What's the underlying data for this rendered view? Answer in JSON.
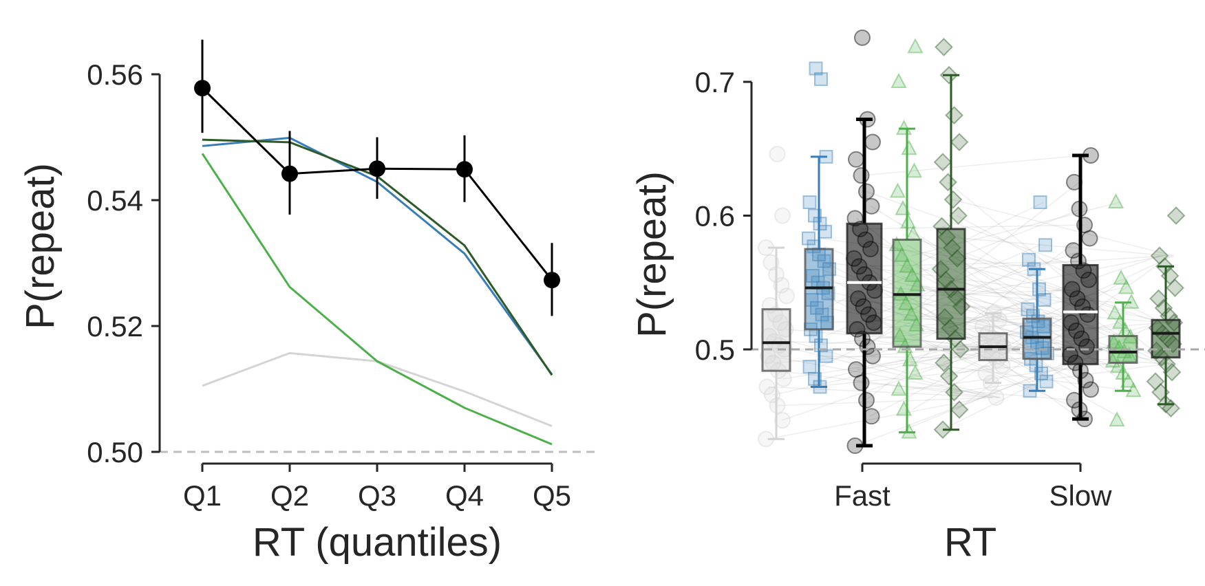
{
  "chart_data": [
    {
      "type": "line",
      "xlabel": "RT (quantiles)",
      "ylabel": "P(repeat)",
      "categories": [
        "Q1",
        "Q2",
        "Q3",
        "Q4",
        "Q5"
      ],
      "ylim": [
        0.5,
        0.562
      ],
      "yticks": [
        0.5,
        0.52,
        0.54,
        0.56
      ],
      "ytick_labels": [
        "0.50",
        "0.52",
        "0.54",
        "0.56"
      ],
      "reference_line": 0.5,
      "series": [
        {
          "color": "#d4d4d4",
          "values": [
            0.5105,
            0.5157,
            0.5144,
            0.5096,
            0.5041
          ]
        },
        {
          "color": "#4daf4a",
          "values": [
            0.5474,
            0.5262,
            0.5144,
            0.507,
            0.5012
          ]
        },
        {
          "color": "#377eb8",
          "values": [
            0.5486,
            0.5499,
            0.5429,
            0.5315,
            0.5123
          ]
        },
        {
          "color": "#2d5a27",
          "values": [
            0.5496,
            0.5492,
            0.5438,
            0.5328,
            0.5122
          ]
        },
        {
          "color": "#000000",
          "markers": true,
          "values": [
            0.5578,
            0.5442,
            0.545,
            0.5449,
            0.5273
          ],
          "err_low": [
            0.5507,
            0.5377,
            0.5402,
            0.5397,
            0.5216
          ],
          "err_high": [
            0.5655,
            0.551,
            0.55,
            0.5503,
            0.5332
          ]
        }
      ],
      "grid": false
    },
    {
      "type": "box",
      "xlabel": "RT",
      "ylabel": "P(repeat)",
      "categories": [
        "Fast",
        "Slow"
      ],
      "ylim": [
        0.42,
        0.73
      ],
      "yticks": [
        0.5,
        0.6,
        0.7
      ],
      "ytick_labels": [
        "0.5",
        "0.6",
        "0.7"
      ],
      "reference_line": 0.5,
      "groups": [
        {
          "category": "Fast",
          "color": "#d4d4d4",
          "marker": "circle",
          "q1": 0.484,
          "median": 0.505,
          "q3": 0.53,
          "whisker_low": 0.433,
          "whisker_high": 0.576,
          "points": [
            0.433,
            0.447,
            0.458,
            0.466,
            0.472,
            0.478,
            0.484,
            0.49,
            0.495,
            0.5,
            0.503,
            0.506,
            0.51,
            0.515,
            0.52,
            0.526,
            0.533,
            0.54,
            0.548,
            0.556,
            0.565,
            0.576,
            0.6,
            0.646
          ]
        },
        {
          "category": "Fast",
          "color": "#377eb8",
          "marker": "square",
          "q1": 0.515,
          "median": 0.546,
          "q3": 0.575,
          "whisker_low": 0.472,
          "whisker_high": 0.644,
          "points": [
            0.472,
            0.478,
            0.487,
            0.495,
            0.503,
            0.51,
            0.515,
            0.52,
            0.526,
            0.531,
            0.537,
            0.542,
            0.546,
            0.55,
            0.555,
            0.56,
            0.566,
            0.571,
            0.577,
            0.583,
            0.588,
            0.594,
            0.6,
            0.61,
            0.644,
            0.702,
            0.71
          ]
        },
        {
          "category": "Fast",
          "color": "#000000",
          "marker": "circle",
          "q1": 0.512,
          "median": 0.55,
          "q3": 0.594,
          "whisker_low": 0.428,
          "whisker_high": 0.672,
          "points": [
            0.428,
            0.45,
            0.462,
            0.475,
            0.485,
            0.495,
            0.502,
            0.508,
            0.515,
            0.52,
            0.526,
            0.532,
            0.538,
            0.544,
            0.55,
            0.556,
            0.562,
            0.568,
            0.575,
            0.582,
            0.59,
            0.598,
            0.607,
            0.618,
            0.63,
            0.642,
            0.655,
            0.672,
            0.733
          ]
        },
        {
          "category": "Fast",
          "color": "#4daf4a",
          "marker": "triangle",
          "q1": 0.502,
          "median": 0.541,
          "q3": 0.582,
          "whisker_low": 0.438,
          "whisker_high": 0.665,
          "points": [
            0.438,
            0.455,
            0.47,
            0.482,
            0.492,
            0.502,
            0.51,
            0.518,
            0.526,
            0.534,
            0.541,
            0.548,
            0.555,
            0.562,
            0.57,
            0.578,
            0.586,
            0.595,
            0.605,
            0.618,
            0.633,
            0.65,
            0.665,
            0.7,
            0.726
          ]
        },
        {
          "category": "Fast",
          "color": "#2d5a27",
          "marker": "diamond",
          "q1": 0.508,
          "median": 0.545,
          "q3": 0.59,
          "whisker_low": 0.44,
          "whisker_high": 0.705,
          "points": [
            0.44,
            0.455,
            0.468,
            0.48,
            0.49,
            0.5,
            0.508,
            0.516,
            0.524,
            0.532,
            0.539,
            0.545,
            0.552,
            0.56,
            0.568,
            0.576,
            0.584,
            0.592,
            0.6,
            0.612,
            0.625,
            0.64,
            0.655,
            0.675,
            0.705,
            0.726
          ]
        },
        {
          "category": "Slow",
          "color": "#d4d4d4",
          "marker": "circle",
          "q1": 0.492,
          "median": 0.502,
          "q3": 0.512,
          "whisker_low": 0.475,
          "whisker_high": 0.527,
          "points": [
            0.464,
            0.475,
            0.482,
            0.488,
            0.492,
            0.496,
            0.499,
            0.502,
            0.505,
            0.508,
            0.512,
            0.517,
            0.522,
            0.527
          ]
        },
        {
          "category": "Slow",
          "color": "#377eb8",
          "marker": "square",
          "q1": 0.493,
          "median": 0.509,
          "q3": 0.523,
          "whisker_low": 0.469,
          "whisker_high": 0.56,
          "points": [
            0.469,
            0.476,
            0.482,
            0.488,
            0.493,
            0.497,
            0.501,
            0.505,
            0.509,
            0.513,
            0.517,
            0.521,
            0.525,
            0.53,
            0.537,
            0.545,
            0.56,
            0.567,
            0.578,
            0.61
          ]
        },
        {
          "category": "Slow",
          "color": "#000000",
          "marker": "circle",
          "q1": 0.489,
          "median": 0.528,
          "q3": 0.563,
          "whisker_low": 0.448,
          "whisker_high": 0.645,
          "points": [
            0.448,
            0.455,
            0.462,
            0.47,
            0.477,
            0.484,
            0.49,
            0.496,
            0.502,
            0.508,
            0.514,
            0.52,
            0.526,
            0.532,
            0.538,
            0.545,
            0.552,
            0.559,
            0.566,
            0.574,
            0.583,
            0.593,
            0.605,
            0.625,
            0.645
          ]
        },
        {
          "category": "Slow",
          "color": "#4daf4a",
          "marker": "triangle",
          "q1": 0.49,
          "median": 0.498,
          "q3": 0.51,
          "whisker_low": 0.469,
          "whisker_high": 0.535,
          "points": [
            0.447,
            0.469,
            0.476,
            0.482,
            0.487,
            0.491,
            0.495,
            0.498,
            0.501,
            0.505,
            0.509,
            0.514,
            0.52,
            0.527,
            0.535,
            0.546,
            0.553,
            0.61
          ]
        },
        {
          "category": "Slow",
          "color": "#2d5a27",
          "marker": "diamond",
          "q1": 0.494,
          "median": 0.512,
          "q3": 0.522,
          "whisker_low": 0.459,
          "whisker_high": 0.562,
          "points": [
            0.456,
            0.459,
            0.468,
            0.476,
            0.483,
            0.489,
            0.494,
            0.499,
            0.504,
            0.508,
            0.512,
            0.516,
            0.52,
            0.525,
            0.531,
            0.538,
            0.546,
            0.555,
            0.562,
            0.57,
            0.6
          ]
        }
      ],
      "grid": false
    }
  ]
}
